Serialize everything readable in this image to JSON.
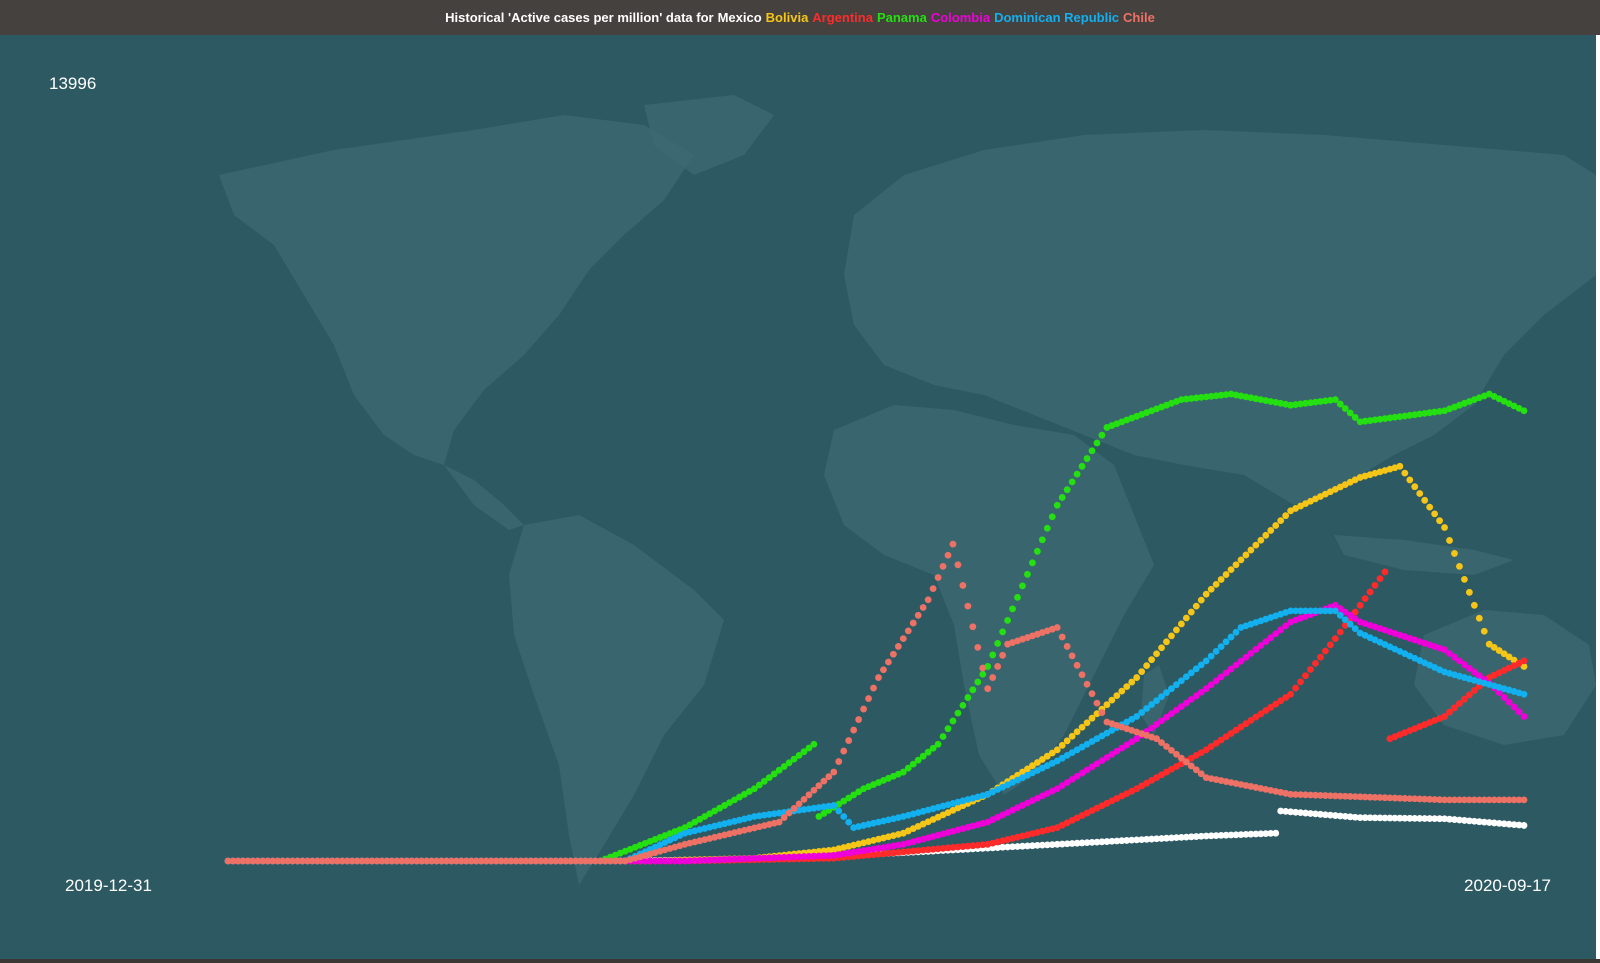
{
  "title": {
    "prefix": "Historical 'Active cases per million' data for",
    "series_labels": [
      "Mexico",
      "Bolivia",
      "Argentina",
      "Panama",
      "Colombia",
      "Dominican Republic",
      "Chile"
    ]
  },
  "colors": {
    "title_bar_bg": "#45413e",
    "panel_bg": "#2d5962",
    "continent_fill": "#3e6b73",
    "prefix_text": "#ffffff"
  },
  "labels": {
    "y_max": "13996",
    "x_start": "2019-12-31",
    "x_end": "2020-09-17"
  },
  "chart_data": {
    "type": "scatter",
    "x_start": "2019-12-31",
    "x_end": "2020-09-17",
    "ylim": [
      0,
      13996
    ],
    "grid": false,
    "legend": "title-bar",
    "background": "world-map",
    "series": [
      {
        "name": "Mexico",
        "color": "#ffffff",
        "points": [
          [
            "2019-12-31",
            0
          ],
          [
            "2020-03-15",
            0
          ],
          [
            "2020-04-15",
            30
          ],
          [
            "2020-05-15",
            150
          ],
          [
            "2020-06-15",
            300
          ],
          [
            "2020-07-15",
            450
          ],
          [
            "2020-07-29",
            500
          ],
          [
            "2020-07-30",
            900
          ],
          [
            "2020-08-15",
            780
          ],
          [
            "2020-09-01",
            760
          ],
          [
            "2020-09-17",
            640
          ]
        ]
      },
      {
        "name": "Bolivia",
        "color": "#f5c518",
        "points": [
          [
            "2019-12-31",
            0
          ],
          [
            "2020-03-25",
            0
          ],
          [
            "2020-04-15",
            50
          ],
          [
            "2020-05-01",
            200
          ],
          [
            "2020-05-15",
            500
          ],
          [
            "2020-06-01",
            1200
          ],
          [
            "2020-06-15",
            2000
          ],
          [
            "2020-07-01",
            3300
          ],
          [
            "2020-07-15",
            4800
          ],
          [
            "2020-08-01",
            6300
          ],
          [
            "2020-08-15",
            6900
          ],
          [
            "2020-08-23",
            7100
          ],
          [
            "2020-09-01",
            6000
          ],
          [
            "2020-09-10",
            3900
          ],
          [
            "2020-09-17",
            3500
          ]
        ]
      },
      {
        "name": "Argentina",
        "color": "#ff2b2b",
        "points": [
          [
            "2019-12-31",
            0
          ],
          [
            "2020-04-01",
            0
          ],
          [
            "2020-05-01",
            50
          ],
          [
            "2020-06-01",
            300
          ],
          [
            "2020-06-15",
            600
          ],
          [
            "2020-07-01",
            1300
          ],
          [
            "2020-07-15",
            2000
          ],
          [
            "2020-08-01",
            3000
          ],
          [
            "2020-08-10",
            4000
          ],
          [
            "2020-08-20",
            5200
          ],
          [
            "2020-08-21",
            2200
          ],
          [
            "2020-09-01",
            2600
          ],
          [
            "2020-09-10",
            3300
          ],
          [
            "2020-09-17",
            3600
          ]
        ]
      },
      {
        "name": "Panama",
        "color": "#25e010",
        "points": [
          [
            "2019-12-31",
            0
          ],
          [
            "2020-03-15",
            0
          ],
          [
            "2020-04-01",
            600
          ],
          [
            "2020-04-15",
            1300
          ],
          [
            "2020-04-27",
            2100
          ],
          [
            "2020-04-28",
            800
          ],
          [
            "2020-05-07",
            1300
          ],
          [
            "2020-05-15",
            1600
          ],
          [
            "2020-05-22",
            2100
          ],
          [
            "2020-06-01",
            3500
          ],
          [
            "2020-06-15",
            6400
          ],
          [
            "2020-06-25",
            7800
          ],
          [
            "2020-07-10",
            8300
          ],
          [
            "2020-07-20",
            8400
          ],
          [
            "2020-08-01",
            8200
          ],
          [
            "2020-08-10",
            8300
          ],
          [
            "2020-08-15",
            7900
          ],
          [
            "2020-09-01",
            8100
          ],
          [
            "2020-09-10",
            8400
          ],
          [
            "2020-09-17",
            8100
          ]
        ]
      },
      {
        "name": "Colombia",
        "color": "#ee00d8",
        "points": [
          [
            "2019-12-31",
            0
          ],
          [
            "2020-04-01",
            0
          ],
          [
            "2020-05-01",
            100
          ],
          [
            "2020-05-15",
            300
          ],
          [
            "2020-06-01",
            700
          ],
          [
            "2020-06-15",
            1300
          ],
          [
            "2020-07-01",
            2200
          ],
          [
            "2020-07-15",
            3100
          ],
          [
            "2020-08-01",
            4300
          ],
          [
            "2020-08-10",
            4600
          ],
          [
            "2020-08-15",
            4300
          ],
          [
            "2020-09-01",
            3800
          ],
          [
            "2020-09-10",
            3200
          ],
          [
            "2020-09-17",
            2600
          ]
        ]
      },
      {
        "name": "Dominican Republic",
        "color": "#12b0ee",
        "points": [
          [
            "2019-12-31",
            0
          ],
          [
            "2020-03-20",
            0
          ],
          [
            "2020-04-01",
            500
          ],
          [
            "2020-04-15",
            800
          ],
          [
            "2020-05-01",
            1000
          ],
          [
            "2020-05-05",
            600
          ],
          [
            "2020-05-15",
            800
          ],
          [
            "2020-06-01",
            1200
          ],
          [
            "2020-06-15",
            1800
          ],
          [
            "2020-07-01",
            2600
          ],
          [
            "2020-07-15",
            3600
          ],
          [
            "2020-07-22",
            4200
          ],
          [
            "2020-08-01",
            4500
          ],
          [
            "2020-08-10",
            4500
          ],
          [
            "2020-08-15",
            4100
          ],
          [
            "2020-09-01",
            3400
          ],
          [
            "2020-09-17",
            3000
          ]
        ]
      },
      {
        "name": "Chile",
        "color": "#ee7166",
        "points": [
          [
            "2019-12-31",
            0
          ],
          [
            "2020-03-20",
            0
          ],
          [
            "2020-04-01",
            300
          ],
          [
            "2020-04-20",
            700
          ],
          [
            "2020-05-01",
            1600
          ],
          [
            "2020-05-10",
            3300
          ],
          [
            "2020-05-20",
            4700
          ],
          [
            "2020-05-25",
            5700
          ],
          [
            "2020-06-01",
            3100
          ],
          [
            "2020-06-05",
            3900
          ],
          [
            "2020-06-15",
            4200
          ],
          [
            "2020-06-25",
            2500
          ],
          [
            "2020-07-05",
            2200
          ],
          [
            "2020-07-15",
            1500
          ],
          [
            "2020-08-01",
            1200
          ],
          [
            "2020-09-01",
            1100
          ],
          [
            "2020-09-17",
            1100
          ]
        ]
      }
    ]
  }
}
